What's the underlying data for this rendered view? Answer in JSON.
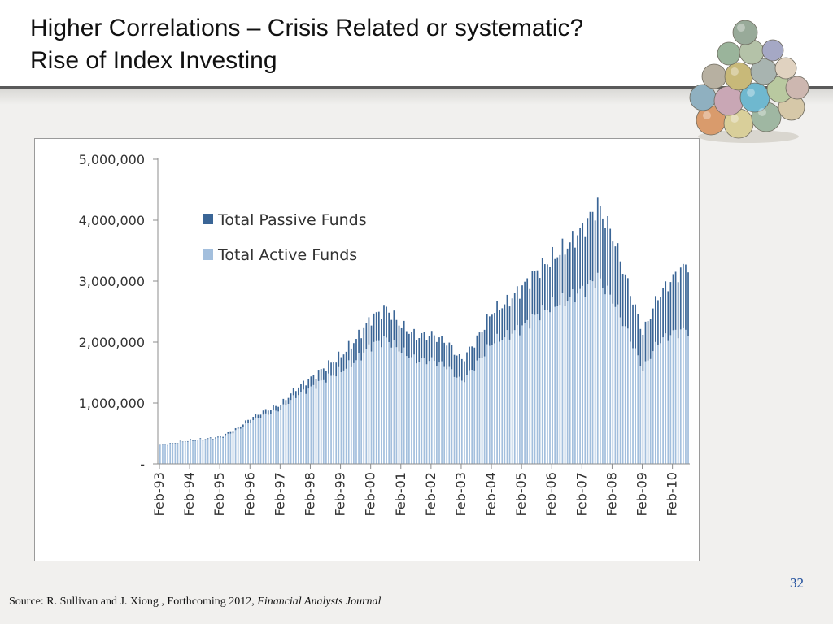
{
  "slide": {
    "title_line1": "Higher Correlations – Crisis Related or systematic?",
    "title_line2": "Rise of Index Investing",
    "page_number": "32",
    "source_prefix": "Source: R. Sullivan and J. Xiong , Forthcoming 2012, ",
    "source_journal": "Financial Analysts Journal",
    "image_icon": "currency-ball-pile-icon"
  },
  "colors": {
    "passive": "#3a6596",
    "active": "#a3bfdd",
    "axis": "#8c8c8c",
    "accent_page_number": "#1f4e9c"
  },
  "chart_data": {
    "type": "bar",
    "stacked": true,
    "title": "",
    "xlabel": "",
    "ylabel": "",
    "ylim": [
      0,
      5000000
    ],
    "yticks": [
      0,
      1000000,
      2000000,
      3000000,
      4000000,
      5000000
    ],
    "ytick_labels": [
      "-",
      "1,000,000",
      "2,000,000",
      "3,000,000",
      "4,000,000",
      "5,000,000"
    ],
    "grid": false,
    "legend_position": "upper-left inside plot",
    "x_tick_labels": [
      "Feb-93",
      "Feb-94",
      "Feb-95",
      "Feb-96",
      "Feb-97",
      "Feb-98",
      "Feb-99",
      "Feb-00",
      "Feb-01",
      "Feb-02",
      "Feb-03",
      "Feb-04",
      "Feb-05",
      "Feb-06",
      "Feb-07",
      "Feb-08",
      "Feb-09",
      "Feb-10"
    ],
    "categories": [
      "Feb-93",
      "Aug-93",
      "Feb-94",
      "Aug-94",
      "Feb-95",
      "Aug-95",
      "Feb-96",
      "Aug-96",
      "Feb-97",
      "Aug-97",
      "Feb-98",
      "Aug-98",
      "Feb-99",
      "Aug-99",
      "Feb-00",
      "Aug-00",
      "Feb-01",
      "Aug-01",
      "Feb-02",
      "Aug-02",
      "Feb-03",
      "Aug-03",
      "Feb-04",
      "Aug-04",
      "Feb-05",
      "Aug-05",
      "Feb-06",
      "Aug-06",
      "Feb-07",
      "Aug-07",
      "Feb-08",
      "Aug-08",
      "Feb-09",
      "Aug-09",
      "Feb-10",
      "Aug-10"
    ],
    "series": [
      {
        "name": "Total Active Funds",
        "values": [
          300000,
          340000,
          380000,
          400000,
          430000,
          540000,
          700000,
          810000,
          900000,
          1120000,
          1250000,
          1400000,
          1530000,
          1700000,
          1950000,
          2050000,
          1850000,
          1700000,
          1700000,
          1600000,
          1350000,
          1650000,
          2000000,
          2100000,
          2250000,
          2450000,
          2600000,
          2700000,
          2850000,
          3050000,
          2700000,
          2150000,
          1550000,
          2000000,
          2150000,
          2200000
        ]
      },
      {
        "name": "Total Passive Funds",
        "values": [
          5000,
          8000,
          10000,
          12000,
          15000,
          30000,
          50000,
          70000,
          80000,
          120000,
          160000,
          200000,
          250000,
          350000,
          450000,
          500000,
          420000,
          400000,
          420000,
          400000,
          350000,
          400000,
          500000,
          550000,
          650000,
          720000,
          780000,
          880000,
          1000000,
          1200000,
          1050000,
          800000,
          600000,
          750000,
          900000,
          1100000
        ]
      }
    ]
  }
}
